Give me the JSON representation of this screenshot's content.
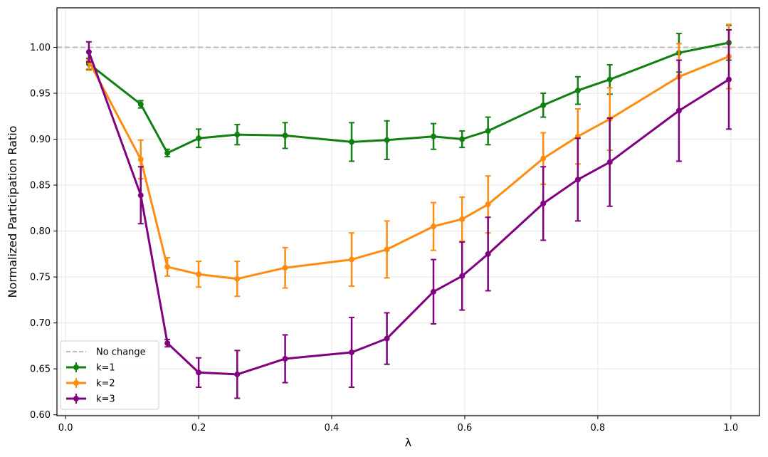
{
  "chart_data": {
    "type": "line",
    "title": "",
    "xlabel": "λ",
    "ylabel": "Normalized Participation Ratio",
    "xlim": [
      -0.013,
      1.043
    ],
    "ylim": [
      0.599,
      1.043
    ],
    "x_ticks": [
      "0.0",
      "0.2",
      "0.4",
      "0.6",
      "0.8",
      "1.0"
    ],
    "y_ticks": [
      "0.60",
      "0.65",
      "0.70",
      "0.75",
      "0.80",
      "0.85",
      "0.90",
      "0.95",
      "1.00"
    ],
    "grid": true,
    "legend_position": "lower-left",
    "reference_line": {
      "name": "No change",
      "y": 1.0,
      "color": "#bbbbbb",
      "style": "dashed"
    },
    "series": [
      {
        "name": "k=1",
        "color": "#117f11",
        "x": [
          0.035,
          0.113,
          0.153,
          0.2,
          0.258,
          0.33,
          0.43,
          0.483,
          0.553,
          0.596,
          0.635,
          0.718,
          0.77,
          0.818,
          0.922,
          0.997
        ],
        "y": [
          0.982,
          0.938,
          0.885,
          0.901,
          0.905,
          0.904,
          0.897,
          0.899,
          0.903,
          0.9,
          0.909,
          0.937,
          0.953,
          0.965,
          0.994,
          1.005
        ],
        "err": [
          0.006,
          0.004,
          0.004,
          0.01,
          0.011,
          0.014,
          0.021,
          0.021,
          0.014,
          0.009,
          0.015,
          0.013,
          0.015,
          0.016,
          0.021,
          0.019
        ]
      },
      {
        "name": "k=2",
        "color": "#ff8c0f",
        "x": [
          0.035,
          0.113,
          0.153,
          0.2,
          0.258,
          0.33,
          0.43,
          0.483,
          0.553,
          0.596,
          0.635,
          0.718,
          0.77,
          0.818,
          0.922,
          0.997
        ],
        "y": [
          0.985,
          0.878,
          0.761,
          0.753,
          0.748,
          0.76,
          0.769,
          0.78,
          0.805,
          0.813,
          0.829,
          0.879,
          0.903,
          0.922,
          0.968,
          0.99
        ],
        "err": [
          0.01,
          0.021,
          0.01,
          0.014,
          0.019,
          0.022,
          0.029,
          0.031,
          0.026,
          0.024,
          0.031,
          0.028,
          0.03,
          0.034,
          0.036,
          0.035
        ]
      },
      {
        "name": "k=3",
        "color": "#800080",
        "x": [
          0.035,
          0.113,
          0.153,
          0.2,
          0.258,
          0.33,
          0.43,
          0.483,
          0.553,
          0.596,
          0.635,
          0.718,
          0.77,
          0.818,
          0.922,
          0.997
        ],
        "y": [
          0.995,
          0.839,
          0.678,
          0.646,
          0.644,
          0.661,
          0.668,
          0.683,
          0.734,
          0.751,
          0.775,
          0.83,
          0.856,
          0.875,
          0.931,
          0.965
        ],
        "err": [
          0.011,
          0.031,
          0.004,
          0.016,
          0.026,
          0.026,
          0.038,
          0.028,
          0.035,
          0.037,
          0.04,
          0.04,
          0.045,
          0.048,
          0.055,
          0.054
        ]
      }
    ]
  }
}
